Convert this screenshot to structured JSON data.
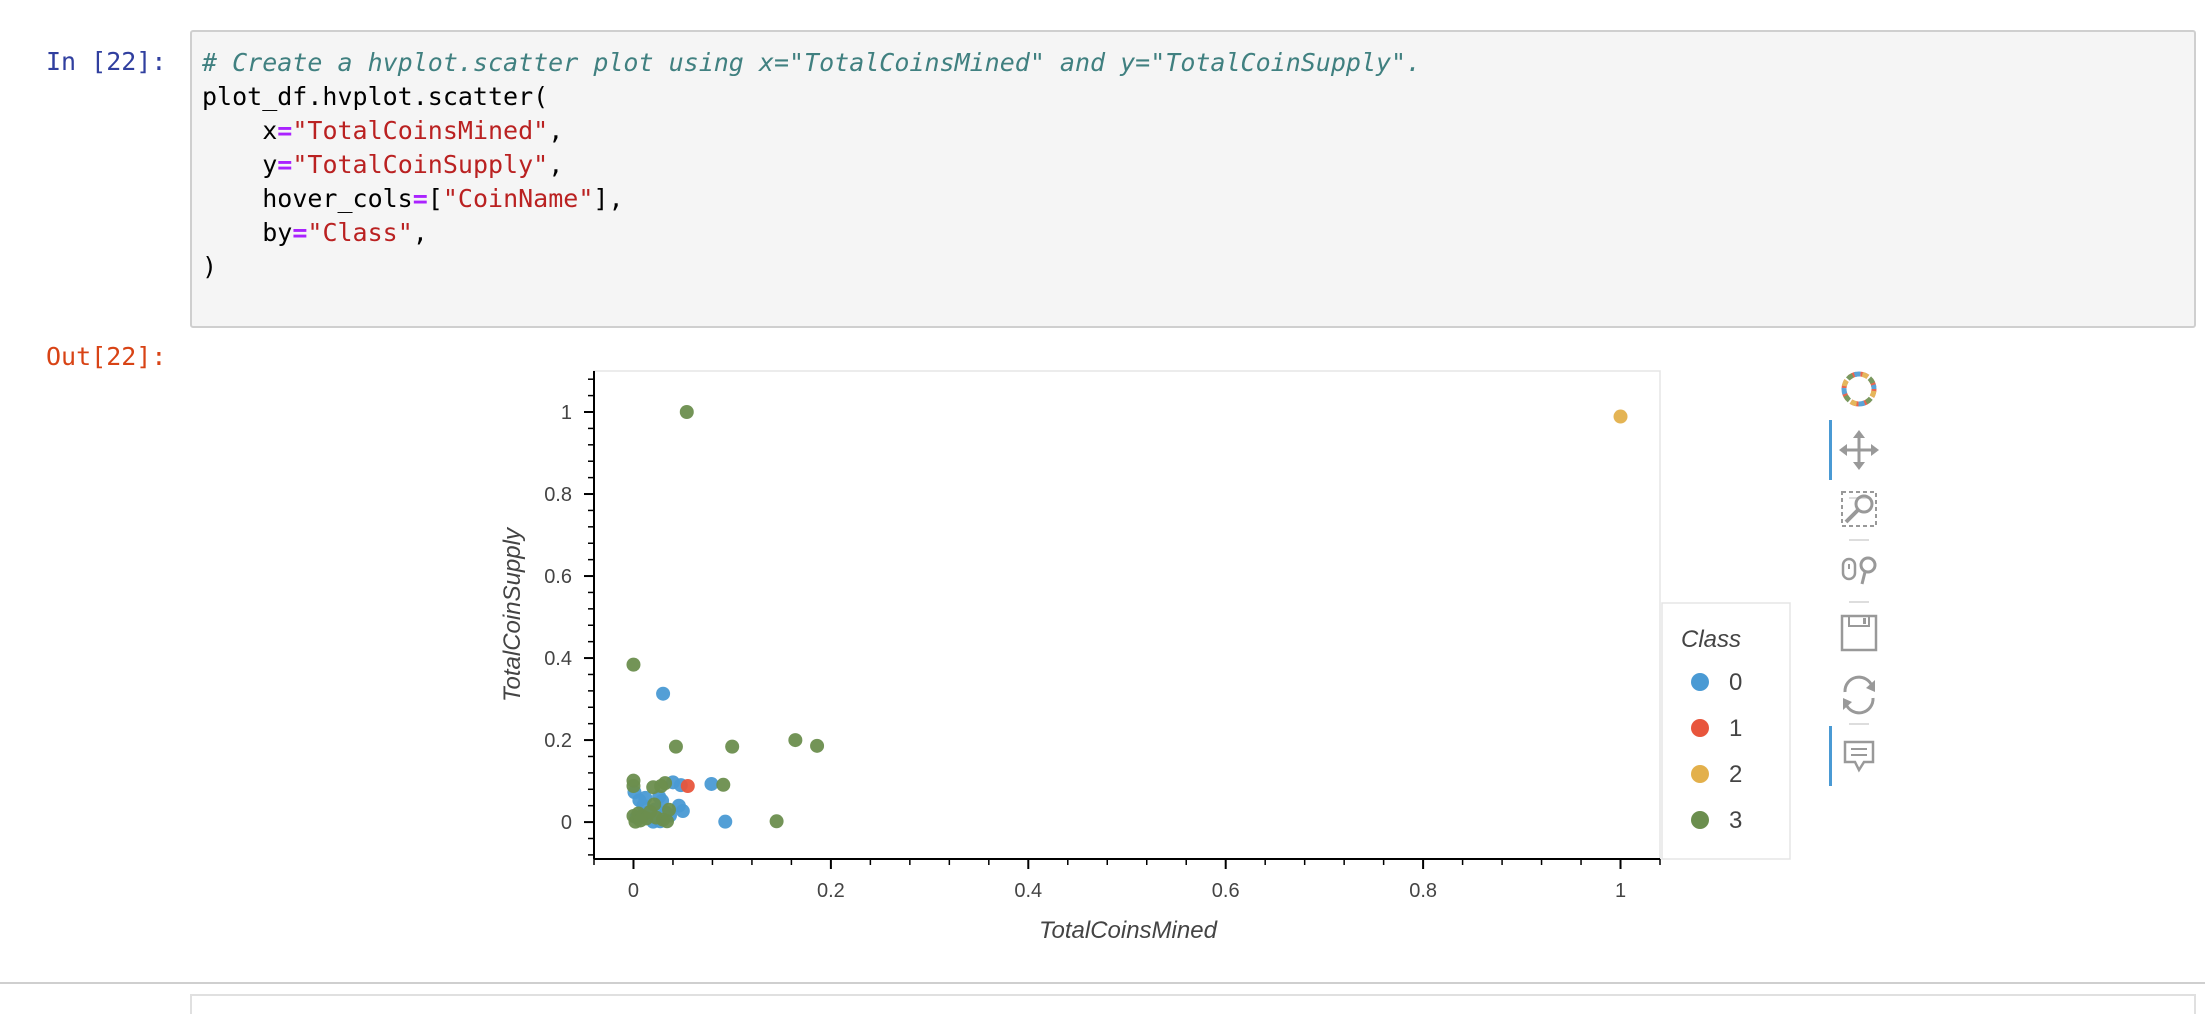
{
  "input_prompt": "In [22]:",
  "output_prompt": "Out[22]:",
  "code": {
    "comment": "# Create a hvplot.scatter plot using x=\"TotalCoinsMined\" and y=\"TotalCoinSupply\".",
    "call": "plot_df.hvplot.scatter(",
    "x_kw": "x",
    "x_val": "\"TotalCoinsMined\"",
    "y_kw": "y",
    "y_val": "\"TotalCoinSupply\"",
    "hover_kw": "hover_cols",
    "hover_open": "[",
    "hover_val": "\"CoinName\"",
    "hover_close": "]",
    "by_kw": "by",
    "by_val": "\"Class\"",
    "eq": "=",
    "comma": ",",
    "close": ")"
  },
  "toolbar": {
    "items": [
      {
        "icon": "bokeh-logo-icon"
      },
      {
        "icon": "pan-icon",
        "active": true
      },
      {
        "icon": "box-zoom-icon"
      },
      {
        "icon": "wheel-zoom-icon"
      },
      {
        "icon": "save-icon"
      },
      {
        "icon": "reset-icon"
      },
      {
        "icon": "hover-icon",
        "active": true
      }
    ]
  },
  "chart_data": {
    "type": "scatter",
    "xlabel": "TotalCoinsMined",
    "ylabel": "TotalCoinSupply",
    "xlim": [
      -0.04,
      1.04
    ],
    "ylim": [
      -0.09,
      1.1
    ],
    "xticks": [
      0,
      0.2,
      0.4,
      0.6,
      0.8,
      1
    ],
    "xtick_labels": [
      "0",
      "0.2",
      "0.4",
      "0.6",
      "0.8",
      "1"
    ],
    "yticks": [
      0,
      0.2,
      0.4,
      0.6,
      0.8,
      1
    ],
    "ytick_labels": [
      "0",
      "0.2",
      "0.4",
      "0.6",
      "0.8",
      "1"
    ],
    "grid": false,
    "legend": {
      "title": "Class",
      "placement": "right"
    },
    "series": [
      {
        "name": "0",
        "color": "#4a9ad4",
        "points": [
          [
            0.001,
            0.073
          ],
          [
            0.006,
            0.053
          ],
          [
            0.01,
            0.04
          ],
          [
            0.015,
            0.023
          ],
          [
            0.003,
            0.012
          ],
          [
            0.02,
            0.001
          ],
          [
            0.027,
            0.002
          ],
          [
            0.029,
            0.052
          ],
          [
            0.033,
            0.023
          ],
          [
            0.037,
            0.016
          ],
          [
            0.04,
            0.097
          ],
          [
            0.046,
            0.04
          ],
          [
            0.048,
            0.09
          ],
          [
            0.05,
            0.027
          ],
          [
            0.03,
            0.313
          ],
          [
            0.079,
            0.093
          ],
          [
            0.093,
            0.001
          ],
          [
            0.012,
            0.059
          ],
          [
            0.022,
            0.031
          ],
          [
            0.026,
            0.062
          ]
        ]
      },
      {
        "name": "1",
        "color": "#e8553c",
        "points": [
          [
            0.055,
            0.088
          ]
        ]
      },
      {
        "name": "2",
        "color": "#e3b04b",
        "points": [
          [
            1.0,
            0.989
          ]
        ]
      },
      {
        "name": "3",
        "color": "#6b8e4e",
        "points": [
          [
            0.054,
            1.0
          ],
          [
            0.0,
            0.384
          ],
          [
            0.043,
            0.184
          ],
          [
            0.1,
            0.184
          ],
          [
            0.164,
            0.2
          ],
          [
            0.186,
            0.186
          ],
          [
            0.0,
            0.101
          ],
          [
            0.0,
            0.088
          ],
          [
            0.02,
            0.085
          ],
          [
            0.028,
            0.088
          ],
          [
            0.032,
            0.095
          ],
          [
            0.091,
            0.091
          ],
          [
            0.145,
            0.002
          ],
          [
            0.002,
            0.001
          ],
          [
            0.0,
            0.015
          ],
          [
            0.005,
            0.021
          ],
          [
            0.009,
            0.014
          ],
          [
            0.013,
            0.009
          ],
          [
            0.017,
            0.025
          ],
          [
            0.023,
            0.011
          ],
          [
            0.03,
            0.006
          ],
          [
            0.034,
            0.002
          ],
          [
            0.036,
            0.03
          ],
          [
            0.021,
            0.043
          ],
          [
            0.007,
            0.004
          ]
        ]
      }
    ]
  }
}
